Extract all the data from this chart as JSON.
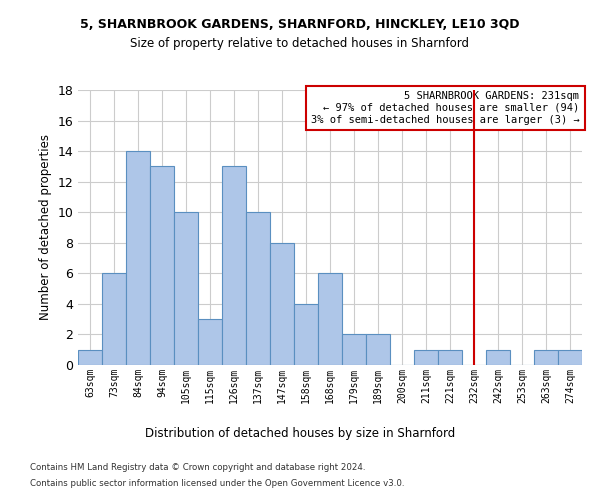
{
  "title1": "5, SHARNBROOK GARDENS, SHARNFORD, HINCKLEY, LE10 3QD",
  "title2": "Size of property relative to detached houses in Sharnford",
  "xlabel": "Distribution of detached houses by size in Sharnford",
  "ylabel": "Number of detached properties",
  "footer1": "Contains HM Land Registry data © Crown copyright and database right 2024.",
  "footer2": "Contains public sector information licensed under the Open Government Licence v3.0.",
  "bin_labels": [
    "63sqm",
    "73sqm",
    "84sqm",
    "94sqm",
    "105sqm",
    "115sqm",
    "126sqm",
    "137sqm",
    "147sqm",
    "158sqm",
    "168sqm",
    "179sqm",
    "189sqm",
    "200sqm",
    "211sqm",
    "221sqm",
    "232sqm",
    "242sqm",
    "253sqm",
    "263sqm",
    "274sqm"
  ],
  "bar_values": [
    1,
    6,
    14,
    13,
    10,
    3,
    13,
    10,
    8,
    4,
    6,
    2,
    2,
    0,
    1,
    1,
    0,
    1,
    0,
    1,
    1
  ],
  "bar_color": "#aec6e8",
  "bar_edge_color": "#5a8fc0",
  "grid_color": "#cccccc",
  "property_line_x": 16,
  "property_line_color": "#cc0000",
  "annotation_text": "5 SHARNBROOK GARDENS: 231sqm\n← 97% of detached houses are smaller (94)\n3% of semi-detached houses are larger (3) →",
  "annotation_box_color": "#cc0000",
  "ylim": [
    0,
    18
  ],
  "yticks": [
    0,
    2,
    4,
    6,
    8,
    10,
    12,
    14,
    16,
    18
  ]
}
